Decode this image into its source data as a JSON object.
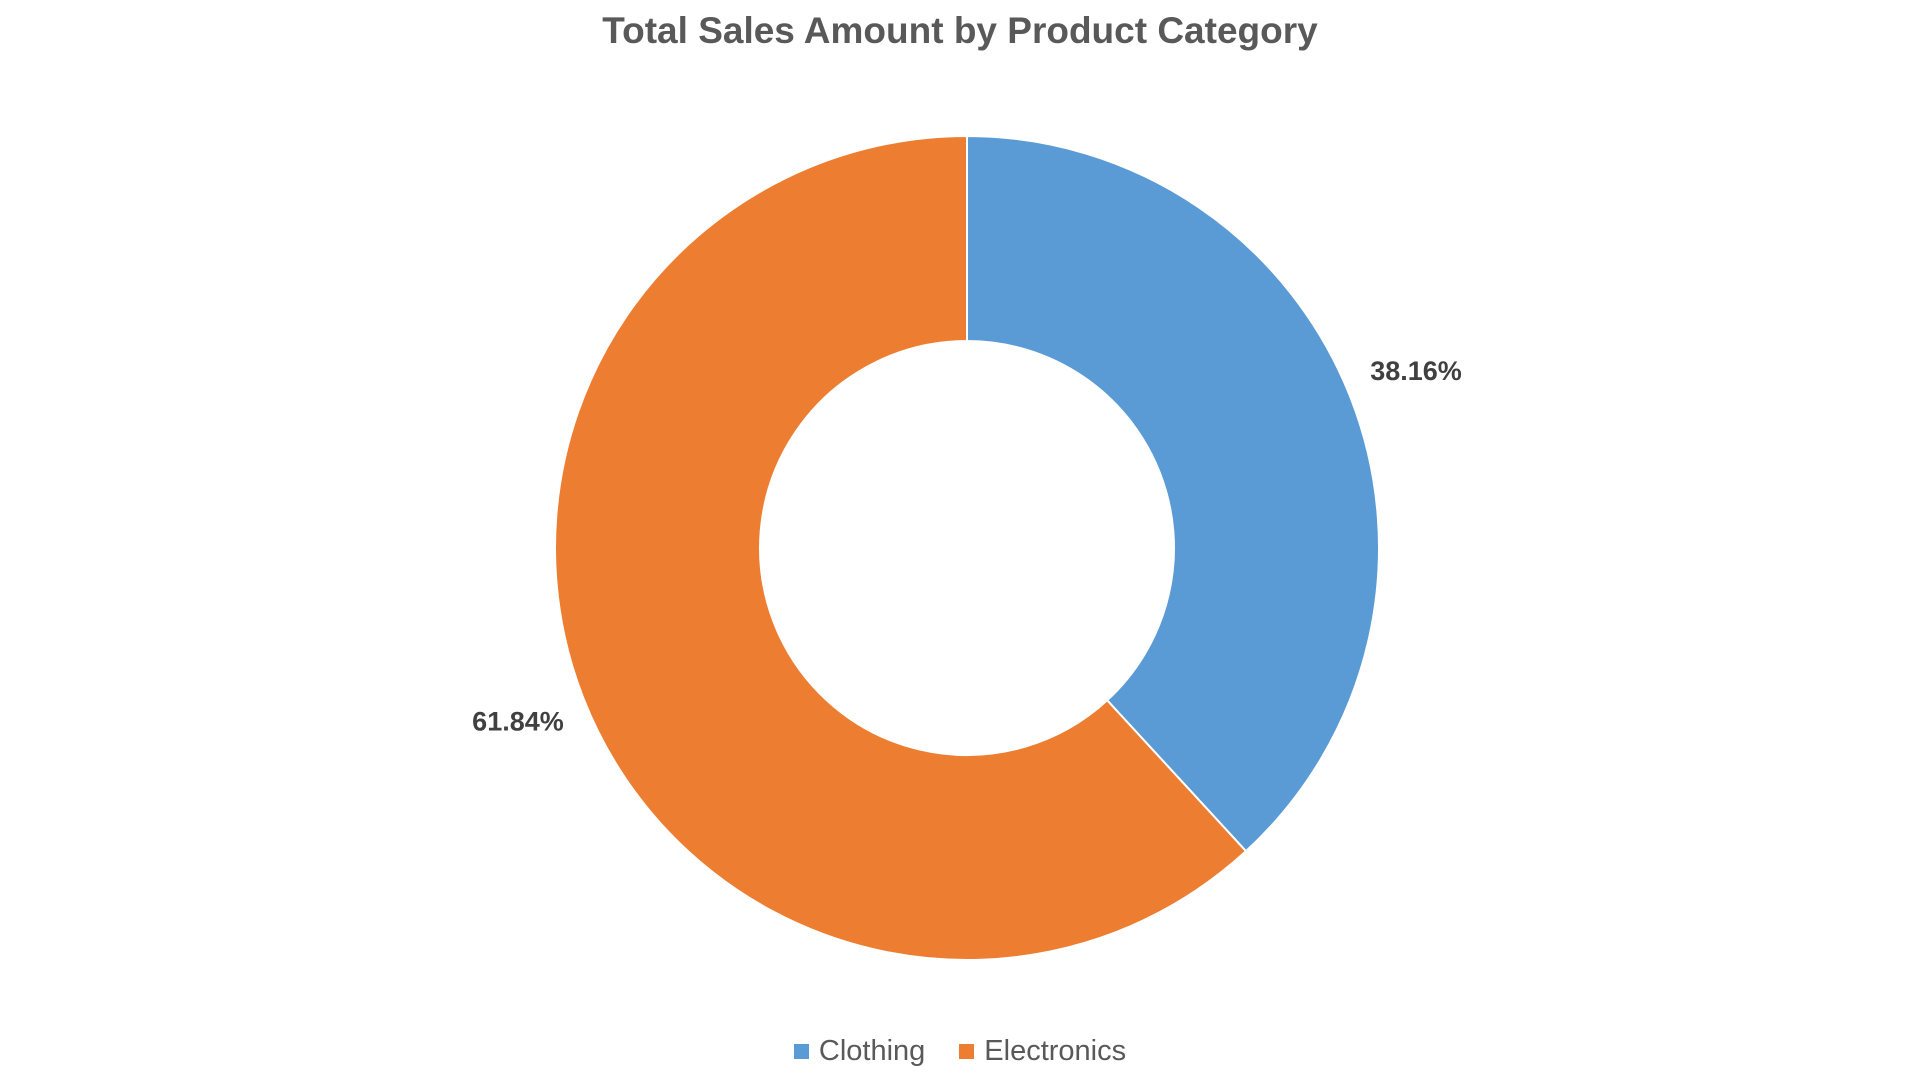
{
  "chart_data": {
    "type": "pie",
    "title": "Total Sales Amount by Product Category",
    "donut": true,
    "categories": [
      "Clothing",
      "Electronics"
    ],
    "values": [
      38.16,
      61.84
    ],
    "labels": [
      "38.16%",
      "61.84%"
    ],
    "colors": [
      "#5B9BD5",
      "#ED7D31"
    ],
    "legend_position": "bottom"
  }
}
